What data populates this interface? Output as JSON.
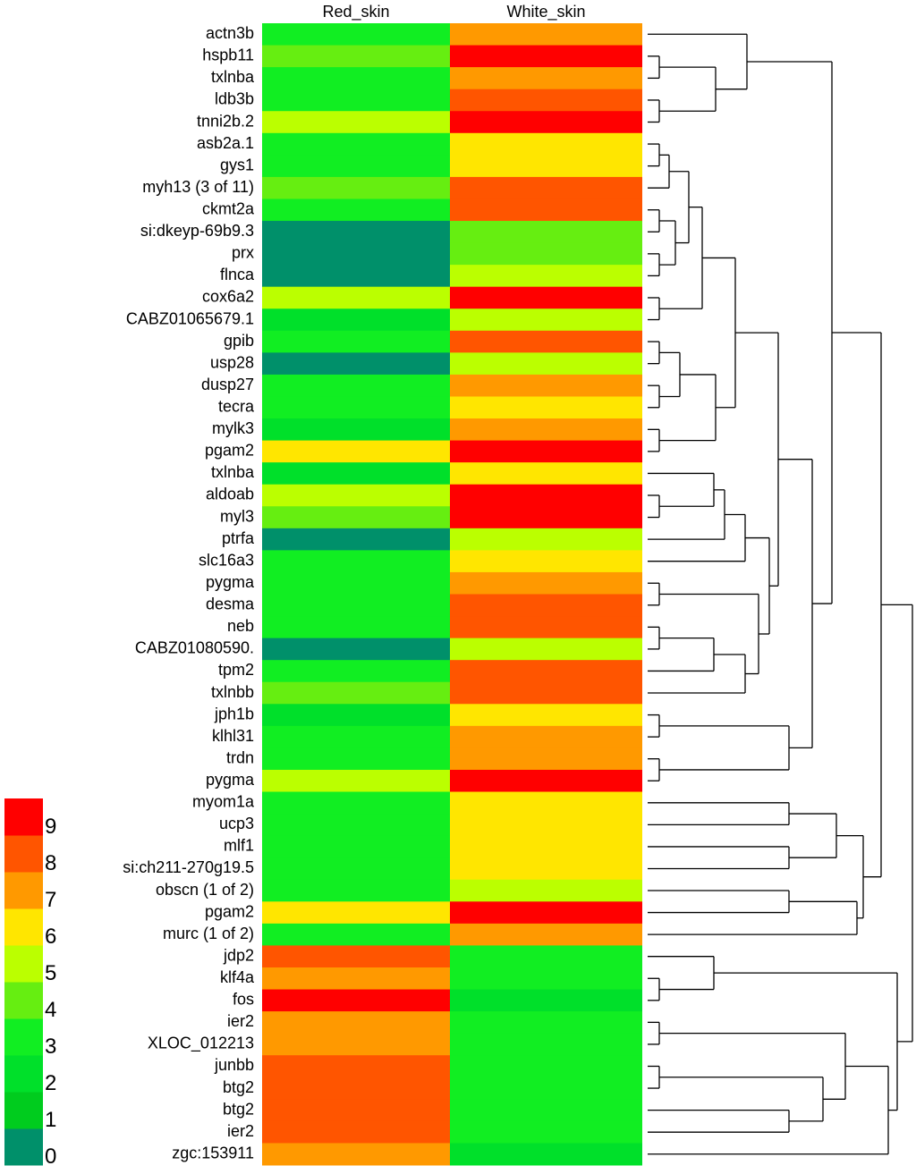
{
  "chart_data": {
    "type": "heatmap",
    "columns": [
      "Red_skin",
      "White_skin"
    ],
    "rows": [
      "actn3b",
      "hspb11",
      "txlnba",
      "ldb3b",
      "tnni2b.2",
      "asb2a.1",
      "gys1",
      "myh13 (3 of 11)",
      "ckmt2a",
      "si:dkeyp-69b9.3",
      "prx",
      "flnca",
      "cox6a2",
      "CABZ01065679.1",
      "gpib",
      "usp28",
      "dusp27",
      "tecra",
      "mylk3",
      "pgam2",
      "txlnba",
      "aldoab",
      "myl3",
      "ptrfa",
      "slc16a3",
      "pygma",
      "desma",
      "neb",
      "CABZ01080590.",
      "tpm2",
      "txlnbb",
      "jph1b",
      "klhl31",
      "trdn",
      "pygma",
      "myom1a",
      "ucp3",
      "mlf1",
      "si:ch211-270g19.5",
      "obscn (1 of 2)",
      "pgam2",
      "murc (1 of 2)",
      "jdp2",
      "klf4a",
      "fos",
      "ier2",
      "XLOC_012213",
      "junbb",
      "btg2",
      "btg2",
      "ier2",
      "zgc:153911"
    ],
    "values": [
      [
        3,
        7
      ],
      [
        4,
        9
      ],
      [
        3,
        7
      ],
      [
        3,
        8
      ],
      [
        5,
        9
      ],
      [
        3,
        6
      ],
      [
        3,
        6
      ],
      [
        4,
        8
      ],
      [
        3,
        8
      ],
      [
        0,
        4
      ],
      [
        0,
        4
      ],
      [
        0,
        5
      ],
      [
        5,
        9
      ],
      [
        2,
        5
      ],
      [
        3,
        8
      ],
      [
        0,
        5
      ],
      [
        3,
        7
      ],
      [
        3,
        6
      ],
      [
        2,
        7
      ],
      [
        6,
        9
      ],
      [
        2,
        6
      ],
      [
        5,
        9
      ],
      [
        4,
        9
      ],
      [
        0,
        5
      ],
      [
        3,
        6
      ],
      [
        3,
        7
      ],
      [
        3,
        8
      ],
      [
        3,
        8
      ],
      [
        0,
        5
      ],
      [
        3,
        8
      ],
      [
        4,
        8
      ],
      [
        2,
        6
      ],
      [
        3,
        7
      ],
      [
        3,
        7
      ],
      [
        5,
        9
      ],
      [
        3,
        6
      ],
      [
        3,
        6
      ],
      [
        3,
        6
      ],
      [
        3,
        6
      ],
      [
        3,
        5
      ],
      [
        6,
        9
      ],
      [
        3,
        7
      ],
      [
        8,
        3
      ],
      [
        7,
        3
      ],
      [
        9,
        2
      ],
      [
        7,
        3
      ],
      [
        7,
        3
      ],
      [
        8,
        3
      ],
      [
        8,
        3
      ],
      [
        8,
        3
      ],
      [
        8,
        3
      ],
      [
        7,
        2
      ]
    ],
    "colorbar_ticks": [
      0,
      1,
      2,
      3,
      4,
      5,
      6,
      7,
      8,
      9
    ],
    "colors": [
      "#00906a",
      "#00cc1e",
      "#00e02a",
      "#11ee22",
      "#66ee11",
      "#bbff00",
      "#ffe600",
      "#ff9900",
      "#ff5500",
      "#ff0000"
    ]
  }
}
